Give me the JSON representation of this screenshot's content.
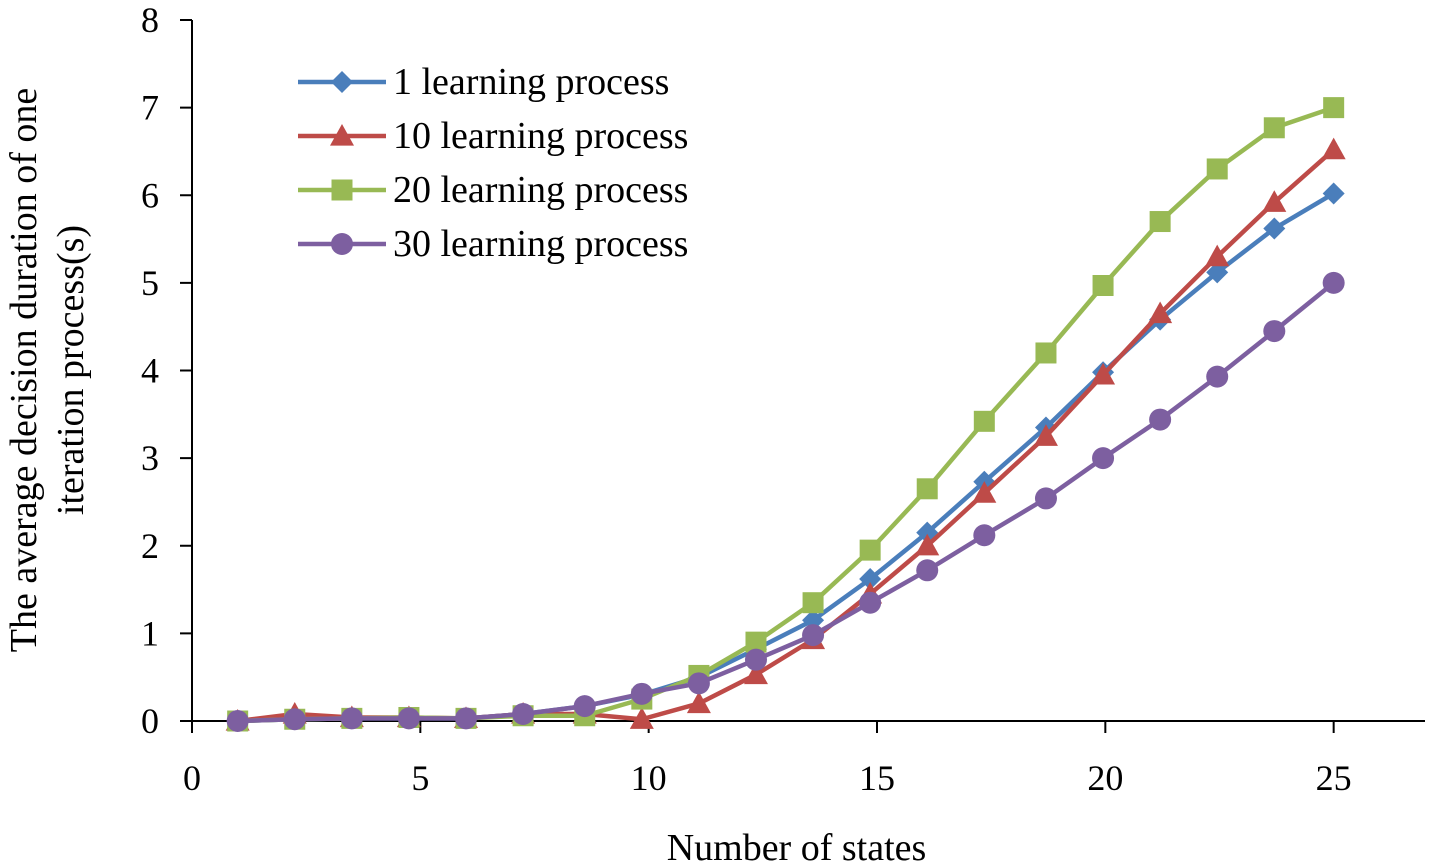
{
  "chart_data": {
    "type": "line",
    "title": "",
    "xlabel": "Number of states",
    "ylabel": [
      "The average decision duration of one",
      "iteration process(s)"
    ],
    "xlim": [
      0,
      27
    ],
    "ylim": [
      0,
      8
    ],
    "xticks": [
      "0",
      "5",
      "10",
      "15",
      "20",
      "25"
    ],
    "yticks": [
      "0",
      "1",
      "2",
      "3",
      "4",
      "5",
      "6",
      "7",
      "8"
    ],
    "grid": false,
    "legend_position": "top-left",
    "x": [
      1,
      2.25,
      3.5,
      4.75,
      6,
      7.25,
      8.6,
      9.85,
      11.1,
      12.35,
      13.6,
      14.85,
      16.1,
      17.35,
      18.7,
      19.95,
      21.2,
      22.45,
      23.7,
      25
    ],
    "series": [
      {
        "name": "1 learning process",
        "color": "#4a7ebb",
        "marker": "diamond",
        "values": [
          0,
          0.02,
          0.03,
          0.03,
          0.03,
          0.08,
          0.17,
          0.3,
          0.5,
          0.82,
          1.15,
          1.62,
          2.15,
          2.73,
          3.35,
          3.98,
          4.58,
          5.12,
          5.62,
          6.02
        ]
      },
      {
        "name": "10 learning process",
        "color": "#be4b48",
        "marker": "triangle",
        "values": [
          0,
          0.08,
          0.04,
          0.04,
          0.03,
          0.08,
          0.08,
          0.02,
          0.2,
          0.53,
          0.93,
          1.45,
          2.0,
          2.6,
          3.25,
          3.95,
          4.65,
          5.3,
          5.92,
          6.52
        ]
      },
      {
        "name": "20 learning process",
        "color": "#98b954",
        "marker": "square",
        "values": [
          0,
          0.02,
          0.03,
          0.04,
          0.03,
          0.06,
          0.06,
          0.25,
          0.52,
          0.9,
          1.35,
          1.95,
          2.65,
          3.42,
          4.2,
          4.97,
          5.7,
          6.3,
          6.77,
          7.0
        ]
      },
      {
        "name": "30 learning process",
        "color": "#7d5fa0",
        "marker": "circle",
        "values": [
          0,
          0.02,
          0.03,
          0.03,
          0.03,
          0.08,
          0.17,
          0.31,
          0.43,
          0.7,
          0.98,
          1.35,
          1.72,
          2.12,
          2.54,
          3.0,
          3.44,
          3.93,
          4.45,
          5.0
        ]
      }
    ]
  }
}
